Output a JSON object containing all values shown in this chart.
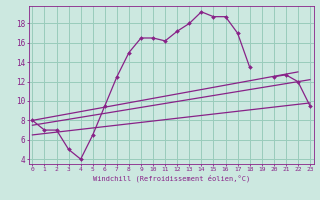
{
  "xlabel": "Windchill (Refroidissement éolien,°C)",
  "bg_color": "#cce8e0",
  "grid_color": "#99ccbb",
  "line_color": "#882288",
  "x_hours": [
    0,
    1,
    2,
    3,
    4,
    5,
    6,
    7,
    8,
    9,
    10,
    11,
    12,
    13,
    14,
    15,
    16,
    17,
    18,
    19,
    20,
    21,
    22,
    23
  ],
  "line1": [
    8.0,
    7.0,
    7.0,
    5.0,
    4.0,
    6.5,
    9.5,
    12.5,
    15.0,
    16.5,
    16.5,
    16.2,
    17.2,
    18.0,
    19.2,
    18.7,
    18.7,
    17.0,
    13.5,
    null,
    12.5,
    12.7,
    12.0,
    9.5
  ],
  "line2_x": [
    0,
    22
  ],
  "line2_y": [
    8.0,
    13.0
  ],
  "line3_x": [
    0,
    23
  ],
  "line3_y": [
    7.5,
    12.2
  ],
  "line4_x": [
    0,
    23
  ],
  "line4_y": [
    6.5,
    9.8
  ],
  "ylim": [
    3.5,
    19.8
  ],
  "xlim": [
    -0.3,
    23.3
  ],
  "yticks": [
    4,
    6,
    8,
    10,
    12,
    14,
    16,
    18
  ],
  "xticks": [
    0,
    1,
    2,
    3,
    4,
    5,
    6,
    7,
    8,
    9,
    10,
    11,
    12,
    13,
    14,
    15,
    16,
    17,
    18,
    19,
    20,
    21,
    22,
    23
  ]
}
